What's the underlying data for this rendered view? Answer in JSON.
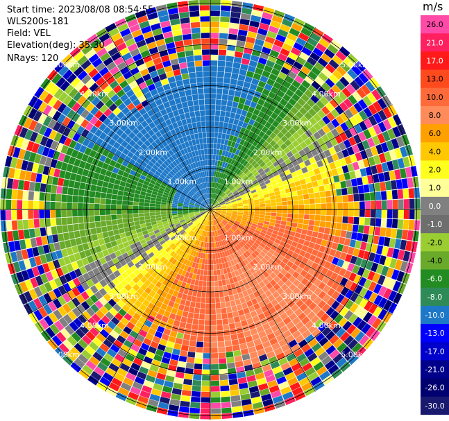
{
  "info": {
    "start_time": "Start time: 2023/08/08 08:54:55",
    "instrument": "WLS200s-181",
    "field": "Field: VEL",
    "elevation": "Elevation(deg): 35.30",
    "nrays": "NRays: 120"
  },
  "colorbar": {
    "unit": "m/s",
    "labels": [
      "26.0",
      "21.0",
      "17.0",
      "13.0",
      "10.0",
      "8.0",
      "6.0",
      "4.0",
      "2.0",
      "1.0",
      "0.0",
      "-1.0",
      "-2.0",
      "-4.0",
      "-6.0",
      "-8.0",
      "-10.0",
      "-13.0",
      "-17.0",
      "-21.0",
      "-26.0",
      "-30.0"
    ],
    "colors": [
      "#ff4aa8",
      "#ff2060",
      "#ff1a1a",
      "#ff4a1e",
      "#ff6a3a",
      "#ff8a5a",
      "#ffa000",
      "#ffc800",
      "#ffff1e",
      "#ffff99",
      "#808080",
      "#6e6e6e",
      "#9acd32",
      "#6aaa2a",
      "#228b22",
      "#2e8b57",
      "#1e78c8",
      "#0000ff",
      "#0000cd",
      "#00008b",
      "#000070",
      "#191970"
    ]
  },
  "ring_labels": {
    "r1": "1.00km",
    "r2": "2.00km",
    "r3": "3.00km",
    "r4": "4.00km",
    "r5": "5.00km"
  }
}
